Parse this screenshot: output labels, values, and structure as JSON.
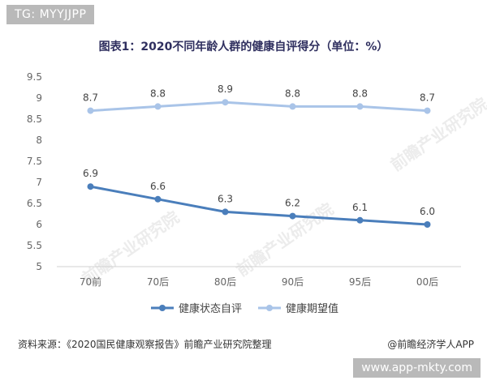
{
  "tag": "TG: MYYJJPP",
  "watermark_url": "www.app-mkty.com",
  "watermark_brand": "前瞻产业研究院",
  "source_note": "资料来源：《2020国民健康观察报告》前瞻产业研究院整理",
  "credit": "@前瞻经济学人APP",
  "chart_data": {
    "type": "line",
    "title": "图表1：2020不同年龄人群的健康自评得分（单位：%）",
    "categories": [
      "70前",
      "70后",
      "80后",
      "90后",
      "95后",
      "00后"
    ],
    "ylim": [
      5,
      9.5
    ],
    "yticks": [
      "5",
      "5.5",
      "6",
      "6.5",
      "7",
      "7.5",
      "8",
      "8.5",
      "9",
      "9.5"
    ],
    "grid": false,
    "legend_position": "bottom",
    "series": [
      {
        "name": "健康状态自评",
        "values": [
          6.9,
          6.6,
          6.3,
          6.2,
          6.1,
          6.0
        ],
        "labels": [
          "6.9",
          "6.6",
          "6.3",
          "6.2",
          "6.1",
          "6.0"
        ],
        "color": "#4a7ebb"
      },
      {
        "name": "健康期望值",
        "values": [
          8.7,
          8.8,
          8.9,
          8.8,
          8.8,
          8.7
        ],
        "labels": [
          "8.7",
          "8.8",
          "8.9",
          "8.8",
          "8.8",
          "8.7"
        ],
        "color": "#a9c4e8"
      }
    ]
  }
}
